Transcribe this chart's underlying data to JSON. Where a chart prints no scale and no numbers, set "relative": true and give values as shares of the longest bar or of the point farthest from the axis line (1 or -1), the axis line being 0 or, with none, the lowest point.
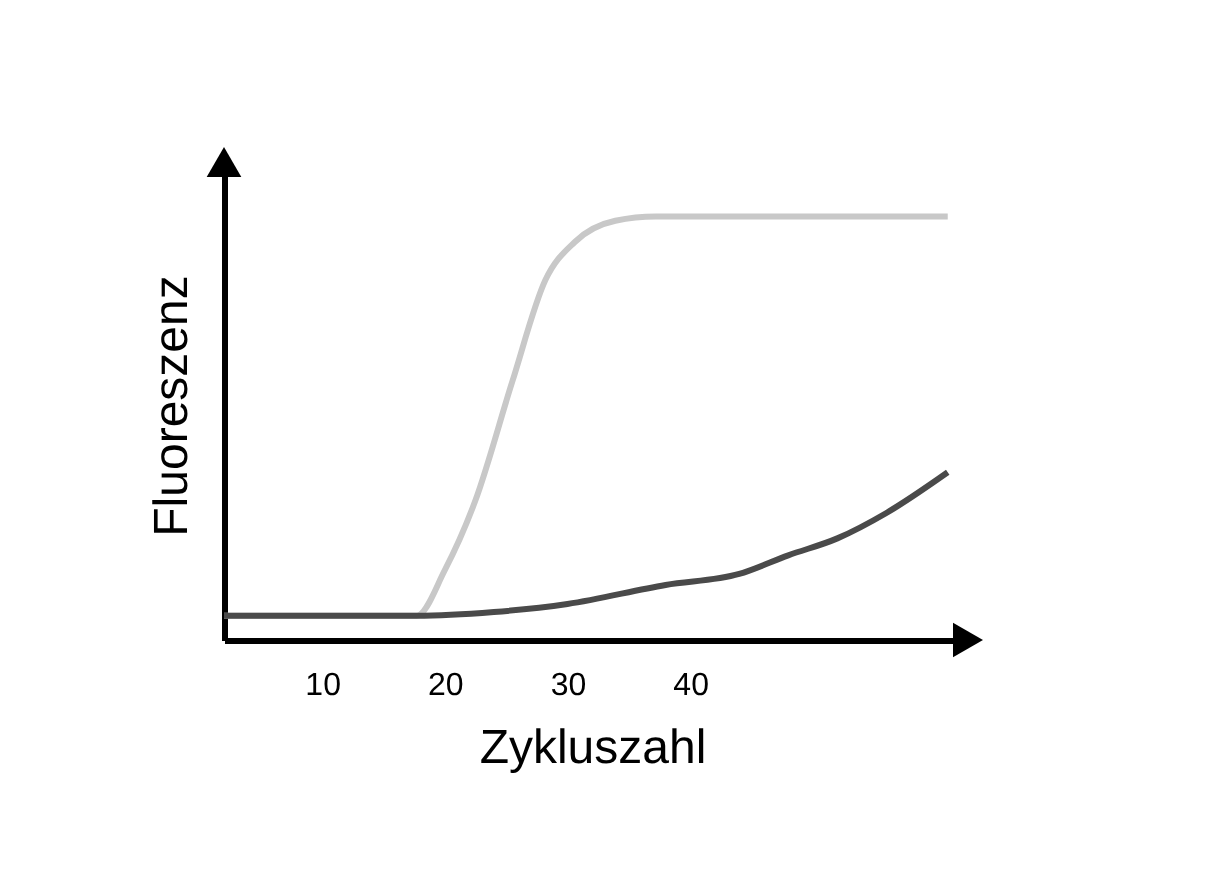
{
  "chart_data": {
    "type": "line",
    "xlabel": "Zykluszahl",
    "ylabel": "Fluoreszenz",
    "relative": true,
    "xlim": [
      2,
      62
    ],
    "xticks": [
      10,
      20,
      30,
      40
    ],
    "grid": false,
    "legend": false,
    "marker": "none",
    "line_style": "solid",
    "series": [
      {
        "color": "#c8c8c8",
        "x": [
          2,
          17.7,
          20,
          22.5,
          25.5,
          28.2,
          30.6,
          33.9,
          37.2,
          61
        ],
        "values": [
          0.057,
          0.057,
          0.165,
          0.33,
          0.61,
          0.85,
          0.94,
          0.99,
          1,
          1
        ]
      },
      {
        "color": "#4a4a4a",
        "x": [
          2,
          17.7,
          24,
          30,
          38,
          44,
          48,
          52,
          56,
          61
        ],
        "values": [
          0.057,
          0.057,
          0.066,
          0.085,
          0.13,
          0.156,
          0.2,
          0.24,
          0.3,
          0.396
        ]
      }
    ]
  }
}
